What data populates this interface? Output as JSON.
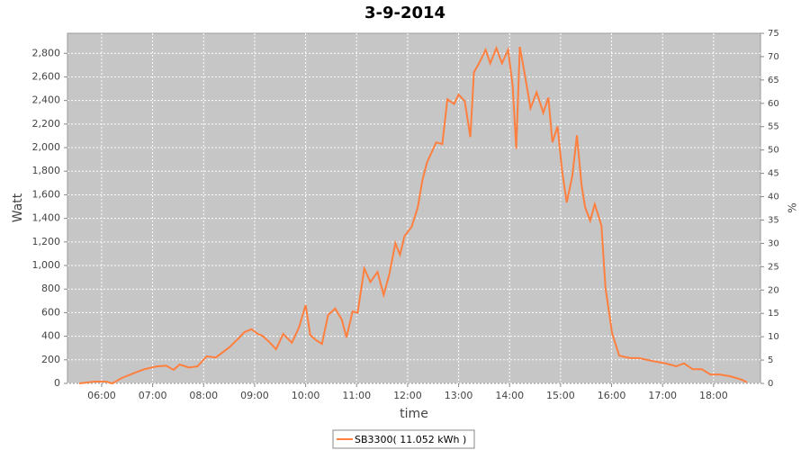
{
  "chart_data": {
    "type": "line",
    "title": "3-9-2014",
    "x_label": "time",
    "y_label": "Watt",
    "y2_label": "%",
    "x": [
      5.56,
      5.86,
      6.09,
      6.21,
      6.39,
      6.65,
      6.83,
      7.09,
      7.27,
      7.41,
      7.53,
      7.71,
      7.88,
      8.06,
      8.24,
      8.5,
      8.68,
      8.8,
      8.94,
      9.06,
      9.15,
      9.29,
      9.42,
      9.56,
      9.73,
      9.87,
      10.0,
      10.09,
      10.21,
      10.32,
      10.44,
      10.58,
      10.71,
      10.8,
      10.92,
      11.02,
      11.15,
      11.27,
      11.41,
      11.53,
      11.64,
      11.76,
      11.85,
      11.94,
      12.08,
      12.2,
      12.29,
      12.38,
      12.56,
      12.68,
      12.78,
      12.91,
      13.0,
      13.12,
      13.23,
      13.3,
      13.4,
      13.53,
      13.62,
      13.74,
      13.85,
      13.97,
      14.06,
      14.13,
      14.2,
      14.29,
      14.41,
      14.53,
      14.66,
      14.76,
      14.84,
      14.94,
      15.03,
      15.12,
      15.23,
      15.32,
      15.41,
      15.48,
      15.58,
      15.67,
      15.8,
      15.88,
      16.01,
      16.15,
      16.36,
      16.54,
      16.8,
      17.06,
      17.27,
      17.42,
      17.59,
      17.77,
      17.94,
      18.12,
      18.33,
      18.56,
      18.65
    ],
    "series": [
      {
        "name": "SB3300( 11.052 kWh )",
        "color": "#ff7f3f",
        "values": [
          0,
          15,
          15,
          0,
          45,
          90,
          120,
          145,
          150,
          115,
          160,
          135,
          145,
          230,
          220,
          305,
          380,
          435,
          460,
          420,
          405,
          350,
          290,
          420,
          345,
          475,
          665,
          410,
          365,
          335,
          580,
          635,
          540,
          390,
          610,
          600,
          975,
          860,
          945,
          750,
          925,
          1190,
          1090,
          1250,
          1330,
          1495,
          1725,
          1875,
          2045,
          2030,
          2410,
          2370,
          2450,
          2395,
          2090,
          2640,
          2715,
          2830,
          2715,
          2845,
          2715,
          2830,
          2525,
          1990,
          2855,
          2640,
          2335,
          2470,
          2295,
          2425,
          2045,
          2180,
          1800,
          1535,
          1760,
          2105,
          1685,
          1495,
          1380,
          1520,
          1340,
          810,
          425,
          235,
          215,
          215,
          190,
          170,
          145,
          170,
          120,
          120,
          75,
          75,
          60,
          30,
          10
        ]
      }
    ],
    "xlim": [
      5.33,
      18.92
    ],
    "xticks": [
      {
        "value": 6,
        "label": "06:00"
      },
      {
        "value": 7,
        "label": "07:00"
      },
      {
        "value": 8,
        "label": "08:00"
      },
      {
        "value": 9,
        "label": "09:00"
      },
      {
        "value": 10,
        "label": "10:00"
      },
      {
        "value": 11,
        "label": "11:00"
      },
      {
        "value": 12,
        "label": "12:00"
      },
      {
        "value": 13,
        "label": "13:00"
      },
      {
        "value": 14,
        "label": "14:00"
      },
      {
        "value": 15,
        "label": "15:00"
      },
      {
        "value": 16,
        "label": "16:00"
      },
      {
        "value": 17,
        "label": "17:00"
      },
      {
        "value": 18,
        "label": "18:00"
      }
    ],
    "ylim": [
      0,
      2970
    ],
    "yticks": [
      0,
      200,
      400,
      600,
      800,
      {
        "value": 1000,
        "label": "1,000"
      },
      {
        "value": 1200,
        "label": "1,200"
      },
      {
        "value": 1400,
        "label": "1,400"
      },
      {
        "value": 1600,
        "label": "1,600"
      },
      {
        "value": 1800,
        "label": "1,800"
      },
      {
        "value": 2000,
        "label": "2,000"
      },
      {
        "value": 2200,
        "label": "2,200"
      },
      {
        "value": 2400,
        "label": "2,400"
      },
      {
        "value": 2600,
        "label": "2,600"
      },
      {
        "value": 2800,
        "label": "2,800"
      }
    ],
    "y2lim": [
      0,
      75
    ],
    "y2ticks": [
      0,
      5,
      10,
      15,
      20,
      25,
      30,
      35,
      40,
      45,
      50,
      55,
      60,
      65,
      70,
      75
    ],
    "grid": true
  }
}
